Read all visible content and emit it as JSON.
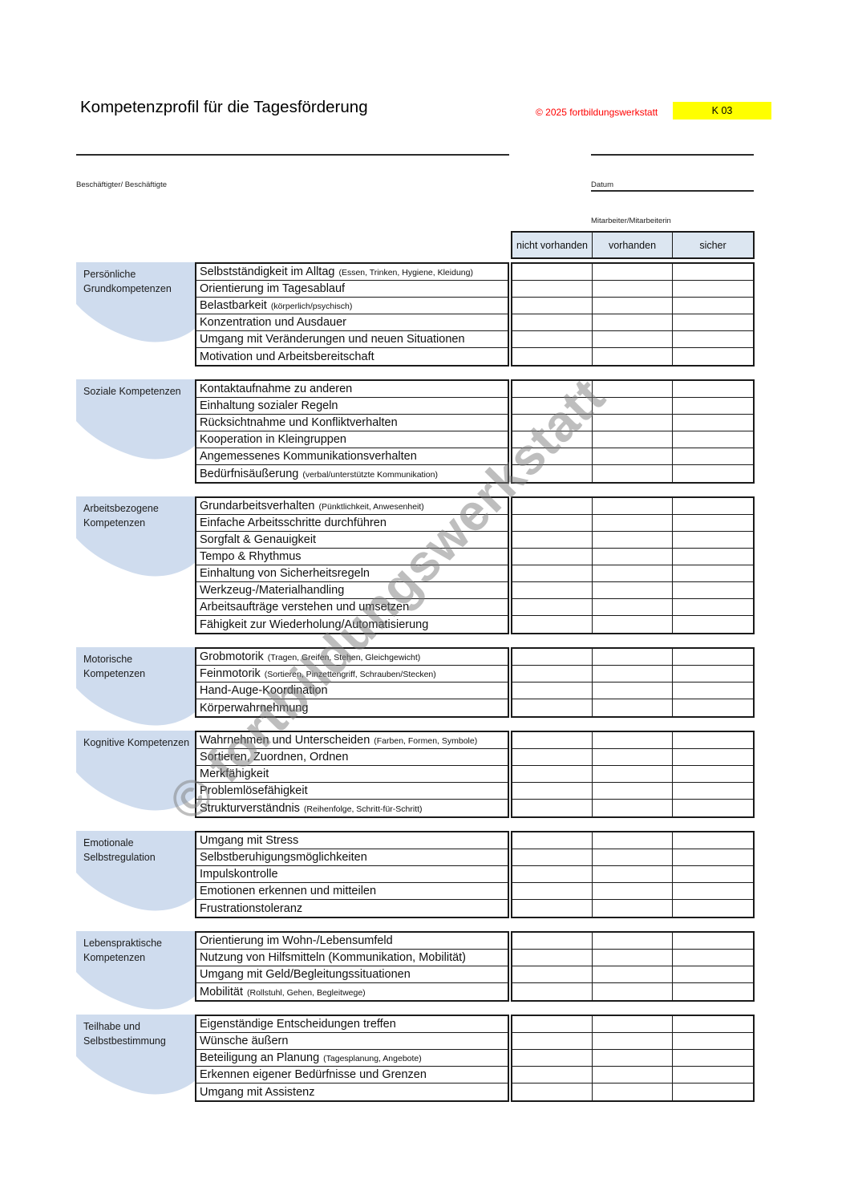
{
  "header": {
    "title": "Kompetenzprofil für die Tagesförderung",
    "copyright": "© 2025 fortbildungswerkstatt",
    "code": "K 03"
  },
  "fields": {
    "person_label": "Beschäftigter/ Beschäftigte",
    "person_value": "",
    "date_label": "Datum",
    "date_value": "",
    "staff_label": "Mitarbeiter/Mitarbeiterin",
    "staff_value": ""
  },
  "rating_scale": [
    "nicht vorhanden",
    "vorhanden",
    "sicher"
  ],
  "watermark": "© fortbildungswerkstatt",
  "colors": {
    "header_blue": "#dce6f1",
    "shape_blue": "#cfdcee",
    "highlight_yellow": "#ffff00",
    "copyright_red": "#ff0000",
    "border_black": "#1a1a1a"
  },
  "sections": [
    {
      "label": "Persönliche Grundkompetenzen",
      "rows": [
        {
          "text": "Selbstständigkeit im Alltag",
          "note": "(Essen, Trinken, Hygiene, Kleidung)"
        },
        {
          "text": "Orientierung im Tagesablauf",
          "note": ""
        },
        {
          "text": "Belastbarkeit",
          "note": "(körperlich/psychisch)"
        },
        {
          "text": "Konzentration und Ausdauer",
          "note": ""
        },
        {
          "text": "Umgang mit Veränderungen und neuen Situationen",
          "note": ""
        },
        {
          "text": "Motivation und Arbeitsbereitschaft",
          "note": ""
        }
      ]
    },
    {
      "label": "Soziale Kompetenzen",
      "rows": [
        {
          "text": "Kontaktaufnahme zu anderen",
          "note": ""
        },
        {
          "text": "Einhaltung sozialer Regeln",
          "note": ""
        },
        {
          "text": "Rücksichtnahme und Konfliktverhalten",
          "note": ""
        },
        {
          "text": "Kooperation in Kleingruppen",
          "note": ""
        },
        {
          "text": "Angemessenes Kommunikationsverhalten",
          "note": ""
        },
        {
          "text": "Bedürfnisäußerung",
          "note": "(verbal/unterstützte Kommunikation)"
        }
      ]
    },
    {
      "label": "Arbeitsbezogene Kompetenzen",
      "rows": [
        {
          "text": "Grundarbeitsverhalten",
          "note": "(Pünktlichkeit, Anwesenheit)"
        },
        {
          "text": "Einfache Arbeitsschritte durchführen",
          "note": ""
        },
        {
          "text": "Sorgfalt & Genauigkeit",
          "note": ""
        },
        {
          "text": "Tempo & Rhythmus",
          "note": ""
        },
        {
          "text": "Einhaltung von Sicherheitsregeln",
          "note": ""
        },
        {
          "text": "Werkzeug-/Materialhandling",
          "note": ""
        },
        {
          "text": "Arbeitsaufträge verstehen und umsetzen",
          "note": ""
        },
        {
          "text": "Fähigkeit zur Wiederholung/Automatisierung",
          "note": ""
        }
      ]
    },
    {
      "label": "Motorische Kompetenzen",
      "rows": [
        {
          "text": "Grobmotorik",
          "note": "(Tragen, Greifen, Stehen, Gleichgewicht)"
        },
        {
          "text": "Feinmotorik",
          "note": "(Sortieren, Pinzettengriff, Schrauben/Stecken)"
        },
        {
          "text": "Hand-Auge-Koordination",
          "note": ""
        },
        {
          "text": "Körperwahrnehmung",
          "note": ""
        }
      ]
    },
    {
      "label": "Kognitive Kompetenzen",
      "rows": [
        {
          "text": "Wahrnehmen und Unterscheiden",
          "note": "(Farben, Formen, Symbole)"
        },
        {
          "text": "Sortieren, Zuordnen, Ordnen",
          "note": ""
        },
        {
          "text": "Merkfähigkeit",
          "note": ""
        },
        {
          "text": "Problemlösefähigkeit",
          "note": ""
        },
        {
          "text": "Strukturverständnis",
          "note": "(Reihenfolge, Schritt-für-Schritt)"
        }
      ]
    },
    {
      "label": "Emotionale Selbstregulation",
      "rows": [
        {
          "text": "Umgang mit Stress",
          "note": ""
        },
        {
          "text": "Selbstberuhigungsmöglichkeiten",
          "note": ""
        },
        {
          "text": "Impulskontrolle",
          "note": ""
        },
        {
          "text": "Emotionen erkennen und mitteilen",
          "note": ""
        },
        {
          "text": "Frustrationstoleranz",
          "note": ""
        }
      ]
    },
    {
      "label": "Lebenspraktische Kompetenzen",
      "rows": [
        {
          "text": "Orientierung im Wohn-/Lebensumfeld",
          "note": ""
        },
        {
          "text": "Nutzung von Hilfsmitteln (Kommunikation, Mobilität)",
          "note": ""
        },
        {
          "text": "Umgang mit Geld/Begleitungssituationen",
          "note": ""
        },
        {
          "text": "Mobilität",
          "note": "(Rollstuhl, Gehen, Begleitwege)"
        }
      ]
    },
    {
      "label": "Teilhabe und Selbstbestimmung",
      "rows": [
        {
          "text": "Eigenständige Entscheidungen treffen",
          "note": ""
        },
        {
          "text": "Wünsche äußern",
          "note": ""
        },
        {
          "text": "Beteiligung an Planung",
          "note": "(Tagesplanung, Angebote)"
        },
        {
          "text": "Erkennen eigener Bedürfnisse und Grenzen",
          "note": ""
        },
        {
          "text": "Umgang mit Assistenz",
          "note": ""
        }
      ]
    }
  ]
}
